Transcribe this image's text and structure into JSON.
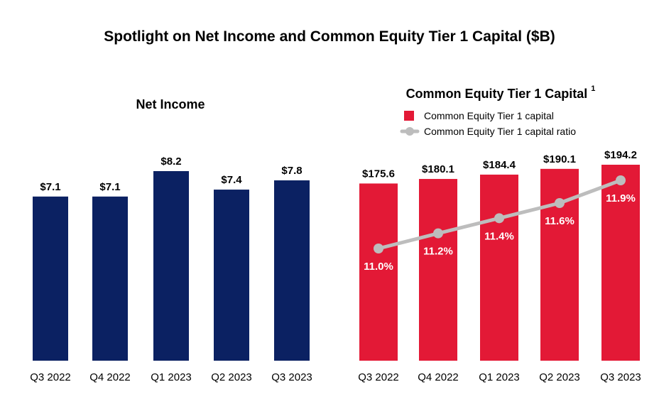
{
  "page": {
    "title": "Spotlight on Net Income and Common Equity Tier 1 Capital ($B)"
  },
  "colors": {
    "net_income_bar": "#0b2162",
    "cet1_bar": "#e31936",
    "ratio_line": "#bdbdbd"
  },
  "chart_data": [
    {
      "type": "bar",
      "title": "Net Income",
      "categories": [
        "Q3 2022",
        "Q4 2022",
        "Q1 2023",
        "Q2 2023",
        "Q3 2023"
      ],
      "values": [
        7.1,
        7.1,
        8.2,
        7.4,
        7.8
      ],
      "value_labels": [
        "$7.1",
        "$7.1",
        "$8.2",
        "$7.4",
        "$7.8"
      ],
      "xlabel": "",
      "ylabel": "",
      "grid": false
    },
    {
      "type": "bar",
      "title": "Common Equity Tier 1 Capital",
      "title_superscript": "1",
      "categories": [
        "Q3 2022",
        "Q4 2022",
        "Q1 2023",
        "Q2 2023",
        "Q3 2023"
      ],
      "series": [
        {
          "name": "Common Equity Tier 1 capital",
          "type": "bar",
          "values": [
            175.6,
            180.1,
            184.4,
            190.1,
            194.2
          ],
          "value_labels": [
            "$175.6",
            "$180.1",
            "$184.4",
            "$190.1",
            "$194.2"
          ]
        },
        {
          "name": "Common Equity Tier 1 capital ratio",
          "type": "line",
          "values": [
            11.0,
            11.2,
            11.4,
            11.6,
            11.9
          ],
          "value_labels": [
            "11.0%",
            "11.2%",
            "11.4%",
            "11.6%",
            "11.9%"
          ]
        }
      ],
      "legend_position": "top",
      "grid": false
    }
  ]
}
